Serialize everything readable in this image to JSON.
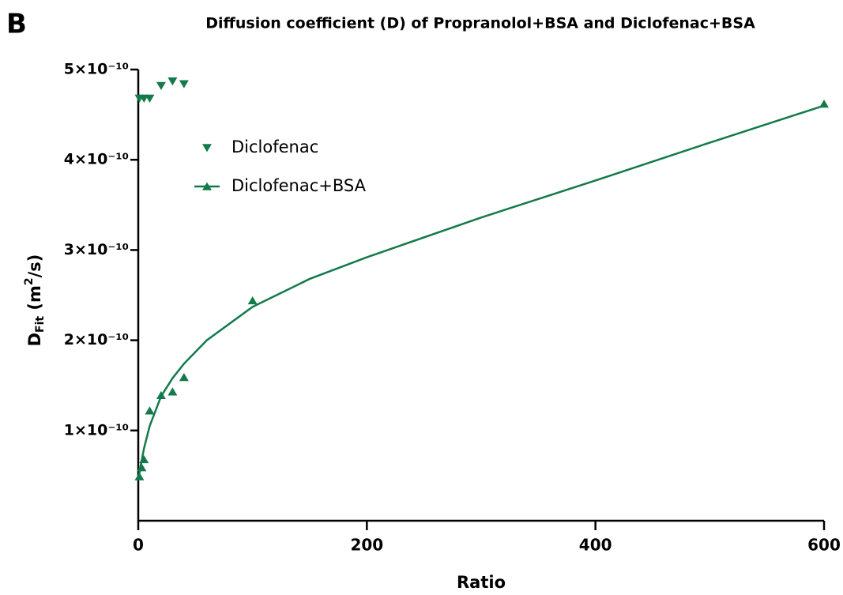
{
  "chart_data": {
    "type": "scatter",
    "panel_label": "B",
    "title": "Diffusion coefficient (D) of Propranolol+BSA and Diclofenac+BSA",
    "xlabel": "Ratio",
    "ylabel_parts": [
      "D",
      "Fit",
      " (m",
      "2",
      "/s)"
    ],
    "xlim": [
      0,
      600
    ],
    "xticks": [
      0,
      200,
      400,
      600
    ],
    "ylim": [
      0,
      5e-10
    ],
    "yticks": [
      {
        "value": 1e-10,
        "label": "1×10⁻¹⁰"
      },
      {
        "value": 2e-10,
        "label": "2×10⁻¹⁰"
      },
      {
        "value": 3e-10,
        "label": "3×10⁻¹⁰"
      },
      {
        "value": 4e-10,
        "label": "4×10⁻¹⁰"
      },
      {
        "value": 5e-10,
        "label": "5×10⁻¹⁰"
      }
    ],
    "series": [
      {
        "name": "Diclofenac",
        "color": "#137a4b",
        "marker": "triangle-down",
        "x": [
          1,
          5,
          10,
          20,
          30,
          40
        ],
        "values": [
          4.68e-10,
          4.68e-10,
          4.68e-10,
          4.82e-10,
          4.87e-10,
          4.84e-10
        ]
      },
      {
        "name": "Diclofenac+BSA",
        "color": "#137a4b",
        "marker": "triangle-up",
        "x": [
          1,
          3,
          5,
          10,
          20,
          30,
          40,
          100,
          600
        ],
        "values": [
          4.9e-11,
          5.9e-11,
          6.8e-11,
          1.22e-10,
          1.39e-10,
          1.43e-10,
          1.59e-10,
          2.44e-10,
          4.62e-10
        ],
        "fit": {
          "x": [
            0,
            2,
            5,
            10,
            20,
            30,
            40,
            60,
            100,
            150,
            200,
            300,
            400,
            500,
            600
          ],
          "values": [
            4.5e-11,
            6e-11,
            8e-11,
            1.05e-10,
            1.38e-10,
            1.58e-10,
            1.74e-10,
            2e-10,
            2.37e-10,
            2.68e-10,
            2.92e-10,
            3.36e-10,
            3.77e-10,
            4.19e-10,
            4.6e-10
          ]
        }
      }
    ],
    "legend": "upper-left"
  }
}
